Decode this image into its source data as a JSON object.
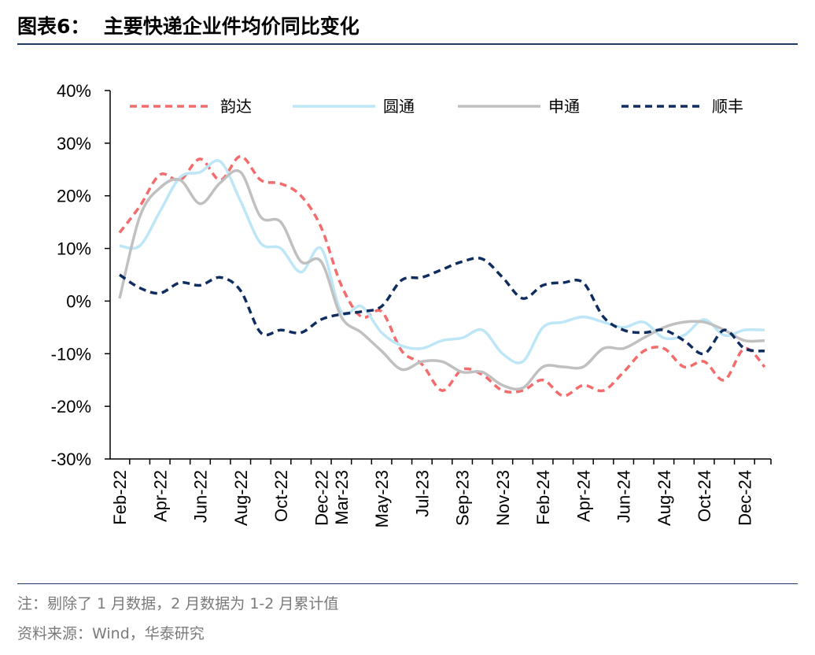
{
  "header": {
    "title": "图表6：  主要快递企业件均价同比变化"
  },
  "footer": {
    "note": "注：剔除了 1 月数据，2 月数据为 1-2 月累计值",
    "source": "资料来源：Wind，华泰研究"
  },
  "chart_data": {
    "type": "line",
    "title": "主要快递企业件均价同比变化",
    "xlabel": "",
    "ylabel": "",
    "ylim": [
      -30,
      40
    ],
    "y_ticks": [
      40,
      30,
      20,
      10,
      0,
      -10,
      -20,
      -30
    ],
    "y_tick_labels": [
      "40%",
      "30%",
      "20%",
      "10%",
      "0%",
      "-10%",
      "-20%",
      "-30%"
    ],
    "x": [
      "Feb-22",
      "Mar-22",
      "Apr-22",
      "May-22",
      "Jun-22",
      "Jul-22",
      "Aug-22",
      "Sep-22",
      "Oct-22",
      "Nov-22",
      "Dec-22",
      "Mar-23",
      "Apr-23",
      "May-23",
      "Jun-23",
      "Jul-23",
      "Aug-23",
      "Sep-23",
      "Oct-23",
      "Nov-23",
      "Dec-23",
      "Feb-24",
      "Mar-24",
      "Apr-24",
      "May-24",
      "Jun-24",
      "Jul-24",
      "Aug-24",
      "Sep-24",
      "Oct-24",
      "Nov-24",
      "Dec-24",
      "Feb-25"
    ],
    "x_tick_labels": [
      "Feb-22",
      "Apr-22",
      "Jun-22",
      "Aug-22",
      "Oct-22",
      "Dec-22",
      "Mar-23",
      "May-23",
      "Jul-23",
      "Sep-23",
      "Nov-23",
      "Feb-24",
      "Apr-24",
      "Jun-24",
      "Aug-24",
      "Oct-24",
      "Dec-24"
    ],
    "legend_position": "top",
    "series": [
      {
        "name": "韵达",
        "color": "#f36b6b",
        "dash": "dashed",
        "values": [
          13,
          18,
          24,
          23,
          27,
          23,
          27.5,
          23,
          22.3,
          20,
          14,
          3,
          -3,
          -2,
          -9.5,
          -12,
          -17,
          -13,
          -14,
          -17,
          -17,
          -15,
          -18,
          -16,
          -17,
          -13.5,
          -9.5,
          -9,
          -12.5,
          -11.5,
          -15,
          -9,
          -12.5
        ]
      },
      {
        "name": "圆通",
        "color": "#bde6f6",
        "dash": "solid",
        "values": [
          10.5,
          10.5,
          17,
          23.5,
          24.5,
          26.5,
          19,
          11,
          10,
          5.5,
          10,
          -2,
          -1,
          -6,
          -8.5,
          -9,
          -7.5,
          -7,
          -5.5,
          -10,
          -11.5,
          -5,
          -4,
          -3,
          -4,
          -5,
          -4,
          -7,
          -6.5,
          -3.5,
          -6.5,
          -5.5,
          -5.5
        ]
      },
      {
        "name": "申通",
        "color": "#c0c0c0",
        "dash": "solid",
        "values": [
          0.5,
          16,
          21.5,
          23,
          18.5,
          22.5,
          24.5,
          16,
          15,
          7.5,
          7.5,
          -3,
          -6,
          -9.5,
          -13,
          -11.5,
          -11.5,
          -13.5,
          -13.5,
          -16,
          -16.5,
          -12.5,
          -12.5,
          -12.5,
          -9,
          -9,
          -7,
          -5,
          -4,
          -4,
          -5.5,
          -7.5,
          -7.5
        ]
      },
      {
        "name": "顺丰",
        "color": "#0f2d5e",
        "dash": "dashed",
        "values": [
          5,
          2.5,
          1.5,
          3.5,
          3,
          4.5,
          2,
          -6,
          -5.5,
          -6,
          -3.5,
          -2.5,
          -2,
          -1,
          4,
          4.5,
          6,
          7.5,
          8,
          4.5,
          0.5,
          3,
          3.5,
          3.5,
          -3,
          -5.5,
          -6,
          -5.5,
          -7.5,
          -10,
          -5.5,
          -9,
          -9.5
        ]
      }
    ]
  }
}
